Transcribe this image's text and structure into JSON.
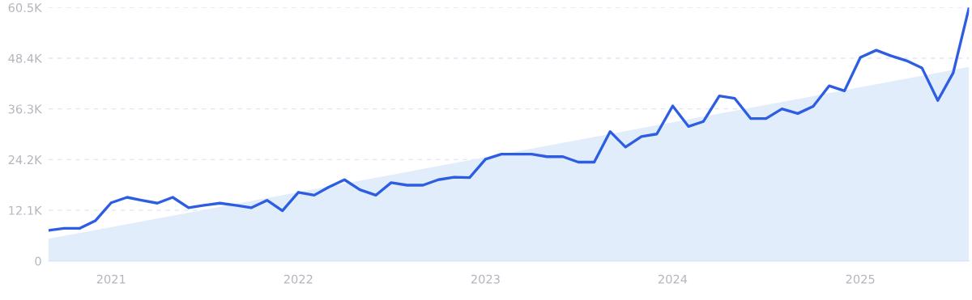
{
  "chart_data": {
    "type": "line",
    "x": [
      "2020-09",
      "2020-10",
      "2020-11",
      "2020-12",
      "2021-01",
      "2021-02",
      "2021-03",
      "2021-04",
      "2021-05",
      "2021-06",
      "2021-07",
      "2021-08",
      "2021-09",
      "2021-10",
      "2021-11",
      "2021-12",
      "2022-01",
      "2022-02",
      "2022-03",
      "2022-04",
      "2022-05",
      "2022-06",
      "2022-07",
      "2022-08",
      "2022-09",
      "2022-10",
      "2022-11",
      "2022-12",
      "2023-01",
      "2023-02",
      "2023-03",
      "2023-04",
      "2023-05",
      "2023-06",
      "2023-07",
      "2023-08",
      "2023-09",
      "2023-10",
      "2023-11",
      "2023-12",
      "2024-01",
      "2024-02",
      "2024-03",
      "2024-04",
      "2024-05",
      "2024-06",
      "2024-07",
      "2024-08",
      "2024-09",
      "2024-10",
      "2024-11",
      "2024-12",
      "2025-01",
      "2025-02",
      "2025-03",
      "2025-04",
      "2025-05",
      "2025-06",
      "2025-07",
      "2025-08"
    ],
    "series": [
      {
        "type": "area",
        "color": "#e2edfb",
        "x": [
          "2020-09",
          "2025-08"
        ],
        "values": [
          5300,
          46300
        ]
      },
      {
        "color": "#2d5de3",
        "values": [
          7300,
          7800,
          7800,
          9600,
          13900,
          15200,
          14500,
          13800,
          15200,
          12700,
          13300,
          13800,
          13300,
          12700,
          14500,
          12000,
          16400,
          15700,
          17600,
          19400,
          17000,
          15700,
          18700,
          18100,
          18100,
          19400,
          20000,
          19900,
          24300,
          25500,
          25500,
          25500,
          24900,
          24900,
          23600,
          23600,
          30900,
          27200,
          29700,
          30300,
          37000,
          32100,
          33300,
          39400,
          38800,
          34000,
          34000,
          36300,
          35200,
          36900,
          41800,
          40600,
          48600,
          50300,
          49000,
          47800,
          46100,
          38300,
          44900,
          60500
        ]
      }
    ],
    "xlim": [
      "2020-09",
      "2025-08"
    ],
    "xticks": [
      {
        "value": "2021-01",
        "label": "2021"
      },
      {
        "value": "2022-01",
        "label": "2022"
      },
      {
        "value": "2023-01",
        "label": "2023"
      },
      {
        "value": "2024-01",
        "label": "2024"
      },
      {
        "value": "2025-01",
        "label": "2025"
      }
    ],
    "ylim": [
      0,
      60500
    ],
    "yticks": [
      {
        "value": 0,
        "label": "0"
      },
      {
        "value": 12100,
        "label": "12.1K"
      },
      {
        "value": 24200,
        "label": "24.2K"
      },
      {
        "value": 36300,
        "label": "36.3K"
      },
      {
        "value": 48400,
        "label": "48.4K"
      },
      {
        "value": 60500,
        "label": "60.5K"
      }
    ],
    "grid": "y",
    "line_style": "solid",
    "marker": "none"
  }
}
